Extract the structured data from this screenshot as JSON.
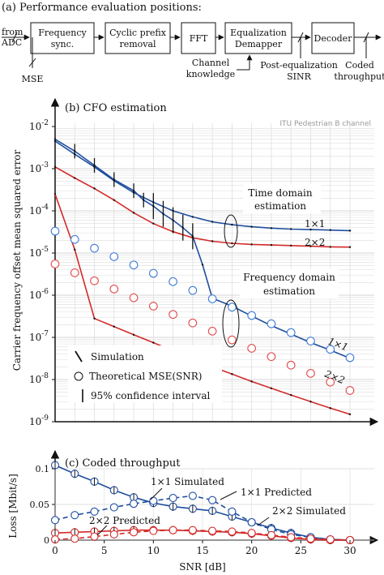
{
  "diagram": {
    "title": "(a) Performance evaluation positions:",
    "input_label_1": "from",
    "input_label_2": "ADC",
    "blocks": [
      {
        "line1": "Frequency",
        "line2": "sync."
      },
      {
        "line1": "Cyclic prefix",
        "line2": "removal"
      },
      {
        "line1": "FFT",
        "line2": ""
      },
      {
        "line1": "Equalization",
        "line2": "Demapper"
      },
      {
        "line1": "Decoder",
        "line2": ""
      }
    ],
    "mse_label": "MSE",
    "channel_label_1": "Channel",
    "channel_label_2": "knowledge",
    "post_eq_label_1": "Post-equalization",
    "post_eq_label_2": "SINR",
    "coded_label_1": "Coded",
    "coded_label_2": "throughput"
  },
  "chart_data": [
    {
      "type": "line",
      "title": "(b) CFO estimation",
      "note": "ITU Pedestrian B channel",
      "ylabel": "Carrier frequency offset mean squared error",
      "yscale": "log",
      "ylim_exp": [
        -9,
        -2
      ],
      "ytick_exps": [
        -9,
        -8,
        -7,
        -6,
        -5,
        -4,
        -3,
        -2
      ],
      "xlim": [
        0,
        30
      ],
      "grid": true,
      "annotations": [
        "Time domain",
        "estimation",
        "Frequency domain",
        "estimation",
        "1×1",
        "2×2",
        "1×1",
        "2×2"
      ],
      "legend": [
        "Simulation",
        "Theoretical MSE(SNR)",
        "95% confidence interval"
      ],
      "series": [
        {
          "name": "Time domain 1×1",
          "color": "#1f4e9e",
          "x": [
            0,
            2,
            4,
            6,
            8,
            10,
            12,
            14,
            16,
            18,
            20,
            22,
            24,
            26,
            28,
            30
          ],
          "y": [
            0.0045,
            0.0022,
            0.0011,
            0.00052,
            0.00027,
            0.00016,
            0.0001,
            7.2e-05,
            5.5e-05,
            4.7e-05,
            4.2e-05,
            3.9e-05,
            3.7e-05,
            3.6e-05,
            3.5e-05,
            3.4e-05
          ]
        },
        {
          "name": "Time domain 2×2",
          "color": "#d42a2a",
          "x": [
            0,
            2,
            4,
            6,
            8,
            10,
            12,
            14,
            16,
            18,
            20,
            22,
            24,
            26,
            28,
            30
          ],
          "y": [
            0.0011,
            0.0006,
            0.00034,
            0.00018,
            9e-05,
            5e-05,
            3.2e-05,
            2.3e-05,
            1.9e-05,
            1.7e-05,
            1.6e-05,
            1.55e-05,
            1.5e-05,
            1.45e-05,
            1.4e-05,
            1.38e-05
          ]
        },
        {
          "name": "Frequency domain 1×1",
          "color": "#1f4e9e",
          "x": [
            0,
            2,
            4,
            6,
            8,
            9,
            10,
            11,
            12,
            13,
            14,
            15,
            16,
            18,
            20,
            22,
            24,
            26,
            28,
            30
          ],
          "y": [
            0.005,
            0.0026,
            0.0012,
            0.00055,
            0.0003,
            0.00018,
            0.00013,
            8.5e-05,
            6e-05,
            4e-05,
            2.5e-05,
            5.3e-06,
            8.5e-07,
            5.5e-07,
            3.2e-07,
            1.9e-07,
            1.2e-07,
            7.5e-08,
            5e-08,
            3.2e-08
          ]
        },
        {
          "name": "Frequency domain 2×2",
          "color": "#d42a2a",
          "x": [
            0,
            2,
            4,
            6,
            8,
            10,
            12,
            14,
            16,
            18,
            20,
            22,
            24,
            26,
            28,
            30
          ],
          "y": [
            0.00025,
            1.2e-05,
            2.8e-07,
            1.8e-07,
            1.15e-07,
            7.5e-08,
            4.8e-08,
            3.1e-08,
            2e-08,
            1.35e-08,
            9e-09,
            6.2e-09,
            4.3e-09,
            3e-09,
            2.1e-09,
            1.5e-09
          ]
        },
        {
          "name": "Theoretical MSE(SNR) 1×1",
          "marker": "circle",
          "color": "#3d7ad6",
          "x": [
            0,
            2,
            4,
            6,
            8,
            10,
            12,
            14,
            16,
            18,
            20,
            22,
            24,
            26,
            28,
            30
          ],
          "y": [
            3.3e-05,
            2.1e-05,
            1.3e-05,
            8.2e-06,
            5.2e-06,
            3.3e-06,
            2.1e-06,
            1.3e-06,
            8.2e-07,
            5.2e-07,
            3.3e-07,
            2.1e-07,
            1.3e-07,
            8.2e-08,
            5.2e-08,
            3.3e-08
          ]
        },
        {
          "name": "Theoretical MSE(SNR) 2×2",
          "marker": "circle",
          "color": "#e24a4a",
          "x": [
            0,
            2,
            4,
            6,
            8,
            10,
            12,
            14,
            16,
            18,
            20,
            22,
            24,
            26,
            28,
            30
          ],
          "y": [
            5.5e-06,
            3.4e-06,
            2.2e-06,
            1.4e-06,
            8.7e-07,
            5.5e-07,
            3.5e-07,
            2.2e-07,
            1.4e-07,
            8.7e-08,
            5.5e-08,
            3.5e-08,
            2.2e-08,
            1.4e-08,
            8.7e-09,
            5.5e-09
          ]
        }
      ]
    },
    {
      "type": "line",
      "title": "(c) Coded throughput",
      "ylabel": "Loss [Mbit/s]",
      "xlabel": "SNR [dB]",
      "ylim": [
        0,
        0.1
      ],
      "yticks": [
        0,
        0.05,
        0.1
      ],
      "xlim": [
        0,
        30
      ],
      "xticks": [
        0,
        5,
        10,
        15,
        20,
        25,
        30
      ],
      "annotations": [
        "1×1 Simulated",
        "1×1 Predicted",
        "2×2 Simulated",
        "2×2 Predicted"
      ],
      "series": [
        {
          "name": "1×1 Simulated",
          "color": "#1f4e9e",
          "dash": false,
          "x": [
            0,
            2,
            4,
            6,
            8,
            10,
            12,
            14,
            16,
            18,
            20,
            22,
            24,
            26,
            28,
            30
          ],
          "y": [
            0.105,
            0.093,
            0.082,
            0.07,
            0.06,
            0.052,
            0.047,
            0.044,
            0.041,
            0.033,
            0.025,
            0.017,
            0.01,
            0.004,
            0.001,
            0.0
          ]
        },
        {
          "name": "1×1 Predicted",
          "color": "#1f4e9e",
          "dash": true,
          "x": [
            0,
            2,
            4,
            6,
            8,
            10,
            12,
            14,
            16,
            18,
            20,
            22,
            24,
            26,
            28,
            30
          ],
          "y": [
            0.028,
            0.035,
            0.04,
            0.046,
            0.051,
            0.055,
            0.059,
            0.062,
            0.056,
            0.04,
            0.025,
            0.015,
            0.008,
            0.004,
            0.001,
            0.0
          ]
        },
        {
          "name": "2×2 Simulated",
          "color": "#d42a2a",
          "dash": false,
          "x": [
            0,
            2,
            4,
            6,
            8,
            10,
            12,
            14,
            16,
            18,
            20,
            22,
            24,
            26,
            28,
            30
          ],
          "y": [
            0.01,
            0.011,
            0.012,
            0.013,
            0.014,
            0.014,
            0.014,
            0.013,
            0.012,
            0.011,
            0.009,
            0.006,
            0.003,
            0.001,
            0.0,
            0.0
          ]
        },
        {
          "name": "2×2 Predicted",
          "color": "#d42a2a",
          "dash": true,
          "x": [
            0,
            2,
            4,
            6,
            8,
            10,
            12,
            14,
            16,
            18,
            20,
            22,
            24,
            26,
            28,
            30
          ],
          "y": [
            0.001,
            0.002,
            0.005,
            0.008,
            0.011,
            0.013,
            0.014,
            0.014,
            0.013,
            0.012,
            0.01,
            0.007,
            0.004,
            0.002,
            0.001,
            0.0
          ]
        }
      ]
    }
  ]
}
